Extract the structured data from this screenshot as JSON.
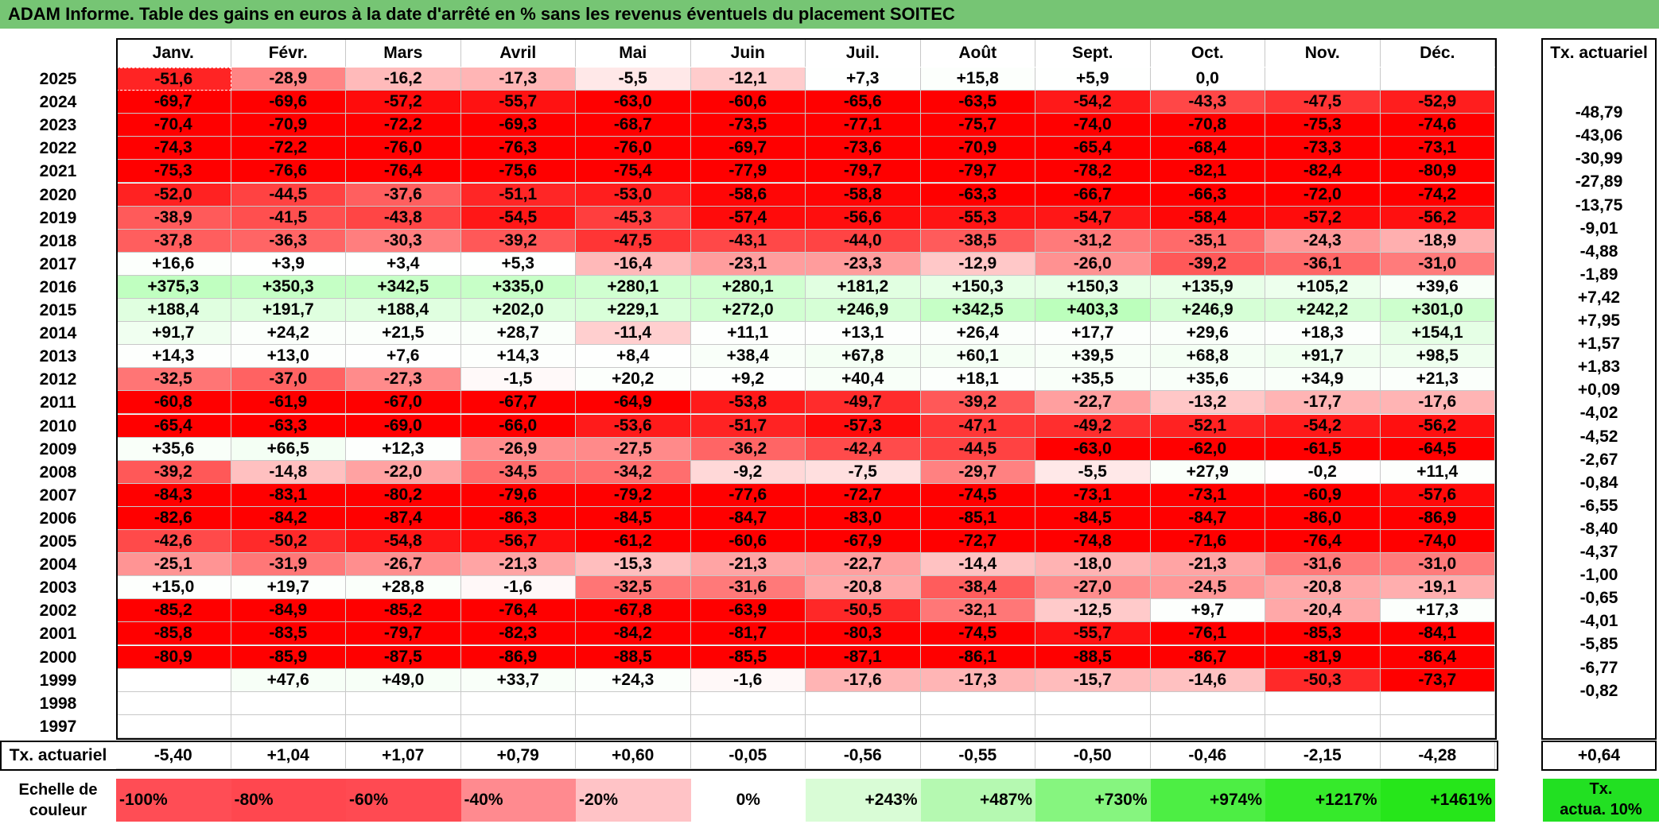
{
  "title": "ADAM Informe. Table des gains en euros à la date d'arrêté en % sans les revenus éventuels du placement SOITEC",
  "months": [
    "Janv.",
    "Févr.",
    "Mars",
    "Avril",
    "Mai",
    "Juin",
    "Juil.",
    "Août",
    "Sept.",
    "Oct.",
    "Nov.",
    "Déc."
  ],
  "tx_header": "Tx. actuariel",
  "rows": [
    {
      "year": "2025",
      "values": [
        "-51,6",
        "-28,9",
        "-16,2",
        "-17,3",
        "-5,5",
        "-12,1",
        "+7,3",
        "+15,8",
        "+5,9",
        "0,0",
        "",
        ""
      ],
      "tx": ""
    },
    {
      "year": "2024",
      "values": [
        "-69,7",
        "-69,6",
        "-57,2",
        "-55,7",
        "-63,0",
        "-60,6",
        "-65,6",
        "-63,5",
        "-54,2",
        "-43,3",
        "-47,5",
        "-52,9"
      ],
      "tx": "-48,79"
    },
    {
      "year": "2023",
      "values": [
        "-70,4",
        "-70,9",
        "-72,2",
        "-69,3",
        "-68,7",
        "-73,5",
        "-77,1",
        "-75,7",
        "-74,0",
        "-70,8",
        "-75,3",
        "-74,6"
      ],
      "tx": "-43,06"
    },
    {
      "year": "2022",
      "values": [
        "-74,3",
        "-72,2",
        "-76,0",
        "-76,3",
        "-76,0",
        "-69,7",
        "-73,6",
        "-70,9",
        "-65,4",
        "-68,4",
        "-73,3",
        "-73,1"
      ],
      "tx": "-30,99"
    },
    {
      "year": "2021",
      "values": [
        "-75,3",
        "-76,6",
        "-76,4",
        "-75,6",
        "-75,4",
        "-77,9",
        "-79,7",
        "-79,7",
        "-78,2",
        "-82,1",
        "-82,4",
        "-80,9"
      ],
      "tx": "-27,89"
    },
    {
      "year": "2020",
      "values": [
        "-52,0",
        "-44,5",
        "-37,6",
        "-51,1",
        "-53,0",
        "-58,6",
        "-58,8",
        "-63,3",
        "-66,7",
        "-66,3",
        "-72,0",
        "-74,2"
      ],
      "tx": "-13,75"
    },
    {
      "year": "2019",
      "values": [
        "-38,9",
        "-41,5",
        "-43,8",
        "-54,5",
        "-45,3",
        "-57,4",
        "-56,6",
        "-55,3",
        "-54,7",
        "-58,4",
        "-57,2",
        "-56,2"
      ],
      "tx": "-9,01"
    },
    {
      "year": "2018",
      "values": [
        "-37,8",
        "-36,3",
        "-30,3",
        "-39,2",
        "-47,5",
        "-43,1",
        "-44,0",
        "-38,5",
        "-31,2",
        "-35,1",
        "-24,3",
        "-18,9"
      ],
      "tx": "-4,88"
    },
    {
      "year": "2017",
      "values": [
        "+16,6",
        "+3,9",
        "+3,4",
        "+5,3",
        "-16,4",
        "-23,1",
        "-23,3",
        "-12,9",
        "-26,0",
        "-39,2",
        "-36,1",
        "-31,0"
      ],
      "tx": "-1,89"
    },
    {
      "year": "2016",
      "values": [
        "+375,3",
        "+350,3",
        "+342,5",
        "+335,0",
        "+280,1",
        "+280,1",
        "+181,2",
        "+150,3",
        "+150,3",
        "+135,9",
        "+105,2",
        "+39,6"
      ],
      "tx": "+7,42"
    },
    {
      "year": "2015",
      "values": [
        "+188,4",
        "+191,7",
        "+188,4",
        "+202,0",
        "+229,1",
        "+272,0",
        "+246,9",
        "+342,5",
        "+403,3",
        "+246,9",
        "+242,2",
        "+301,0"
      ],
      "tx": "+7,95"
    },
    {
      "year": "2014",
      "values": [
        "+91,7",
        "+24,2",
        "+21,5",
        "+28,7",
        "-11,4",
        "+11,1",
        "+13,1",
        "+26,4",
        "+17,7",
        "+29,6",
        "+18,3",
        "+154,1"
      ],
      "tx": "+1,57"
    },
    {
      "year": "2013",
      "values": [
        "+14,3",
        "+13,0",
        "+7,6",
        "+14,3",
        "+8,4",
        "+38,4",
        "+67,8",
        "+60,1",
        "+39,5",
        "+68,8",
        "+91,7",
        "+98,5"
      ],
      "tx": "+1,83"
    },
    {
      "year": "2012",
      "values": [
        "-32,5",
        "-37,0",
        "-27,3",
        "-1,5",
        "+20,2",
        "+9,2",
        "+40,4",
        "+18,1",
        "+35,5",
        "+35,6",
        "+34,9",
        "+21,3"
      ],
      "tx": "+0,09"
    },
    {
      "year": "2011",
      "values": [
        "-60,8",
        "-61,9",
        "-67,0",
        "-67,7",
        "-64,9",
        "-53,8",
        "-49,7",
        "-39,2",
        "-22,7",
        "-13,2",
        "-17,7",
        "-17,6"
      ],
      "tx": "-4,02"
    },
    {
      "year": "2010",
      "values": [
        "-65,4",
        "-63,3",
        "-69,0",
        "-66,0",
        "-53,6",
        "-51,7",
        "-57,3",
        "-47,1",
        "-49,2",
        "-52,1",
        "-54,2",
        "-56,2"
      ],
      "tx": "-4,52"
    },
    {
      "year": "2009",
      "values": [
        "+35,6",
        "+66,5",
        "+12,3",
        "-26,9",
        "-27,5",
        "-36,2",
        "-42,4",
        "-44,5",
        "-63,0",
        "-62,0",
        "-61,5",
        "-64,5"
      ],
      "tx": "-2,67"
    },
    {
      "year": "2008",
      "values": [
        "-39,2",
        "-14,8",
        "-22,0",
        "-34,5",
        "-34,2",
        "-9,2",
        "-7,5",
        "-29,7",
        "-5,5",
        "+27,9",
        "-0,2",
        "+11,4"
      ],
      "tx": "-0,84"
    },
    {
      "year": "2007",
      "values": [
        "-84,3",
        "-83,1",
        "-80,2",
        "-79,6",
        "-79,2",
        "-77,6",
        "-72,7",
        "-74,5",
        "-73,1",
        "-73,1",
        "-60,9",
        "-57,6"
      ],
      "tx": "-6,55"
    },
    {
      "year": "2006",
      "values": [
        "-82,6",
        "-84,2",
        "-87,4",
        "-86,3",
        "-84,5",
        "-84,7",
        "-83,0",
        "-85,1",
        "-84,5",
        "-84,7",
        "-86,0",
        "-86,9"
      ],
      "tx": "-8,40"
    },
    {
      "year": "2005",
      "values": [
        "-42,6",
        "-50,2",
        "-54,8",
        "-56,7",
        "-61,2",
        "-60,6",
        "-67,9",
        "-72,7",
        "-74,8",
        "-71,6",
        "-76,4",
        "-74,0"
      ],
      "tx": "-4,37"
    },
    {
      "year": "2004",
      "values": [
        "-25,1",
        "-31,9",
        "-26,7",
        "-21,3",
        "-15,3",
        "-21,3",
        "-22,7",
        "-14,4",
        "-18,0",
        "-21,3",
        "-31,6",
        "-31,0"
      ],
      "tx": "-1,00"
    },
    {
      "year": "2003",
      "values": [
        "+15,0",
        "+19,7",
        "+28,8",
        "-1,6",
        "-32,5",
        "-31,6",
        "-20,8",
        "-38,4",
        "-27,0",
        "-24,5",
        "-20,8",
        "-19,1"
      ],
      "tx": "-0,65"
    },
    {
      "year": "2002",
      "values": [
        "-85,2",
        "-84,9",
        "-85,2",
        "-76,4",
        "-67,8",
        "-63,9",
        "-50,5",
        "-32,1",
        "-12,5",
        "+9,7",
        "-20,4",
        "+17,3"
      ],
      "tx": "-4,01"
    },
    {
      "year": "2001",
      "values": [
        "-85,8",
        "-83,5",
        "-79,7",
        "-82,3",
        "-84,2",
        "-81,7",
        "-80,3",
        "-74,5",
        "-55,7",
        "-76,1",
        "-85,3",
        "-84,1"
      ],
      "tx": "-5,85"
    },
    {
      "year": "2000",
      "values": [
        "-80,9",
        "-85,9",
        "-87,5",
        "-86,9",
        "-88,5",
        "-85,5",
        "-87,1",
        "-86,1",
        "-88,5",
        "-86,7",
        "-81,9",
        "-86,4"
      ],
      "tx": "-6,77"
    },
    {
      "year": "1999",
      "values": [
        "",
        "+47,6",
        "+49,0",
        "+33,7",
        "+24,3",
        "-1,6",
        "-17,6",
        "-17,3",
        "-15,7",
        "-14,6",
        "-50,3",
        "-73,7"
      ],
      "tx": "-0,82"
    },
    {
      "year": "1998",
      "values": [
        "",
        "",
        "",
        "",
        "",
        "",
        "",
        "",
        "",
        "",
        "",
        ""
      ],
      "tx": ""
    },
    {
      "year": "1997",
      "values": [
        "",
        "",
        "",
        "",
        "",
        "",
        "",
        "",
        "",
        "",
        "",
        ""
      ],
      "tx": ""
    }
  ],
  "tx_row": {
    "label": "Tx. actuariel",
    "values": [
      "-5,40",
      "+1,04",
      "+1,07",
      "+0,79",
      "+0,60",
      "-0,05",
      "-0,56",
      "-0,55",
      "-0,50",
      "-0,46",
      "-2,15",
      "-4,28"
    ],
    "total": "+0,64"
  },
  "scale": {
    "label_line1": "Echelle de",
    "label_line2": "couleur",
    "items": [
      {
        "text": "-100%",
        "color": "#ff4d55"
      },
      {
        "text": "-80%",
        "color": "#ff474f"
      },
      {
        "text": "-60%",
        "color": "#ff4a52"
      },
      {
        "text": "-40%",
        "color": "#ff8a8f"
      },
      {
        "text": "-20%",
        "color": "#ffc3c6"
      },
      {
        "text": "0%",
        "color": "#ffffff"
      },
      {
        "text": "+243%",
        "color": "#d9fcd6"
      },
      {
        "text": "+487%",
        "color": "#b5f9b1"
      },
      {
        "text": "+730%",
        "color": "#86f57f"
      },
      {
        "text": "+974%",
        "color": "#4dee44"
      },
      {
        "text": "+1217%",
        "color": "#36ea2b"
      },
      {
        "text": "+1461%",
        "color": "#26e61a"
      }
    ],
    "tx_legend_line1": "Tx.",
    "tx_legend_line2": "actua. 10%",
    "tx_legend_color": "#22e022"
  }
}
